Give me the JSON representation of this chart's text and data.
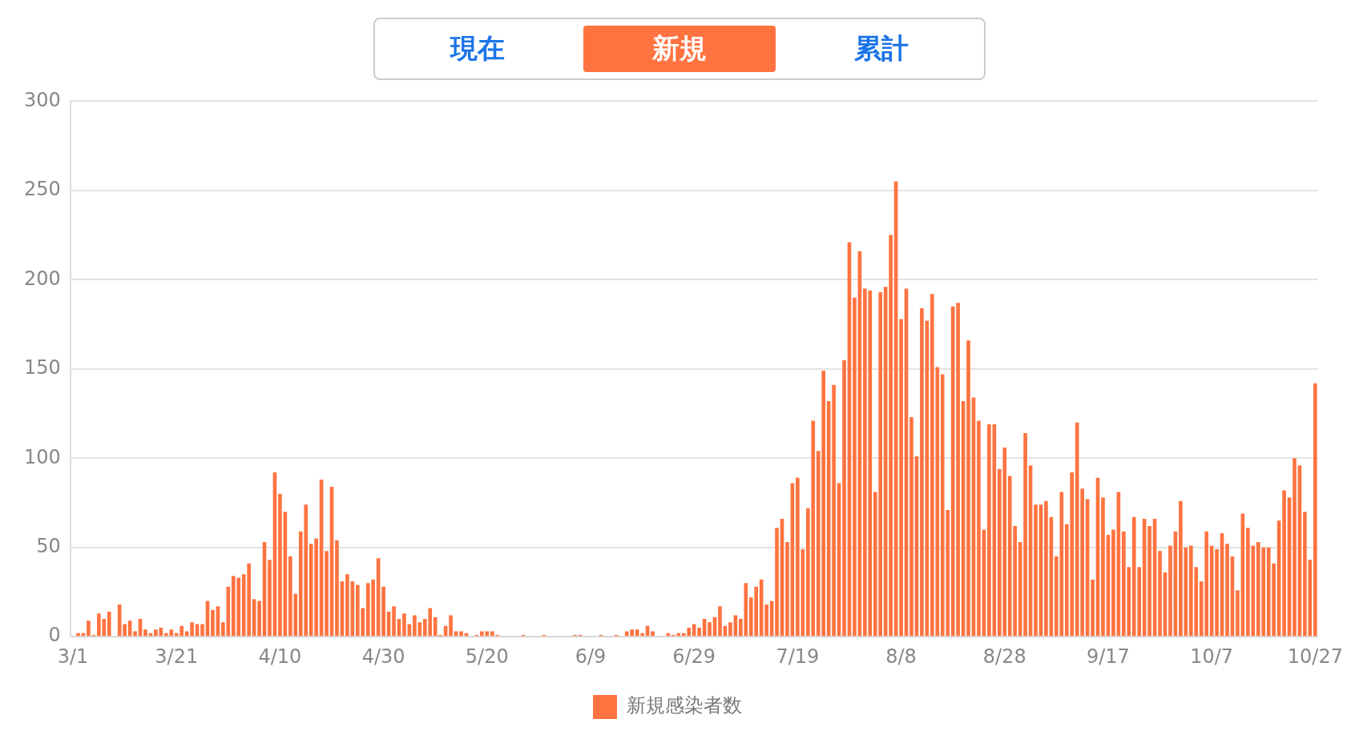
{
  "chart_data": {
    "type": "bar",
    "annotations": [
      "現在",
      "新規",
      "累計"
    ],
    "categories": [
      "3/1",
      null,
      null,
      null,
      null,
      null,
      null,
      null,
      null,
      null,
      null,
      null,
      null,
      null,
      null,
      null,
      null,
      null,
      null,
      null,
      "3/21",
      null,
      null,
      null,
      null,
      null,
      null,
      null,
      null,
      null,
      null,
      null,
      null,
      null,
      null,
      null,
      null,
      null,
      null,
      null,
      "4/10",
      null,
      null,
      null,
      null,
      null,
      null,
      null,
      null,
      null,
      null,
      null,
      null,
      null,
      null,
      null,
      null,
      null,
      null,
      null,
      "4/30",
      null,
      null,
      null,
      null,
      null,
      null,
      null,
      null,
      null,
      null,
      null,
      null,
      null,
      null,
      null,
      null,
      null,
      null,
      null,
      "5/20",
      null,
      null,
      null,
      null,
      null,
      null,
      null,
      null,
      null,
      null,
      null,
      null,
      null,
      null,
      null,
      null,
      null,
      null,
      null,
      "6/9",
      null,
      null,
      null,
      null,
      null,
      null,
      null,
      null,
      null,
      null,
      null,
      null,
      null,
      null,
      null,
      null,
      null,
      null,
      null,
      "6/29",
      null,
      null,
      null,
      null,
      null,
      null,
      null,
      null,
      null,
      null,
      null,
      null,
      null,
      null,
      null,
      null,
      null,
      null,
      null,
      "7/19",
      null,
      null,
      null,
      null,
      null,
      null,
      null,
      null,
      null,
      null,
      null,
      null,
      null,
      null,
      null,
      null,
      null,
      null,
      null,
      "8/8",
      null,
      null,
      null,
      null,
      null,
      null,
      null,
      null,
      null,
      null,
      null,
      null,
      null,
      null,
      null,
      null,
      null,
      null,
      null,
      "8/28",
      null,
      null,
      null,
      null,
      null,
      null,
      null,
      null,
      null,
      null,
      null,
      null,
      null,
      null,
      null,
      null,
      null,
      null,
      null,
      "9/17",
      null,
      null,
      null,
      null,
      null,
      null,
      null,
      null,
      null,
      null,
      null,
      null,
      null,
      null,
      null,
      null,
      null,
      null,
      null,
      "10/7",
      null,
      null,
      null,
      null,
      null,
      null,
      null,
      null,
      null,
      null,
      null,
      null,
      null,
      null,
      null,
      null,
      null,
      null,
      null,
      "10/27"
    ],
    "series": [
      {
        "name": "新規感染者数",
        "color": "#ff7340",
        "values": [
          0,
          2,
          2,
          9,
          1,
          13,
          10,
          14,
          0,
          18,
          7,
          9,
          3,
          10,
          4,
          2,
          4,
          5,
          2,
          4,
          2,
          6,
          3,
          8,
          7,
          7,
          20,
          15,
          17,
          8,
          28,
          34,
          33,
          35,
          41,
          21,
          20,
          53,
          43,
          92,
          80,
          70,
          45,
          24,
          59,
          74,
          52,
          55,
          88,
          48,
          84,
          54,
          31,
          35,
          31,
          29,
          16,
          30,
          32,
          44,
          28,
          14,
          17,
          10,
          13,
          7,
          12,
          8,
          10,
          16,
          11,
          1,
          6,
          12,
          3,
          3,
          2,
          0,
          1,
          3,
          3,
          3,
          1,
          0,
          0,
          0,
          0,
          1,
          0,
          0,
          0,
          1,
          0,
          0,
          0,
          0,
          0,
          1,
          1,
          0,
          0,
          0,
          1,
          0,
          0,
          1,
          0,
          3,
          4,
          4,
          2,
          6,
          3,
          0,
          0,
          2,
          1,
          2,
          2,
          5,
          7,
          5,
          10,
          8,
          11,
          17,
          6,
          8,
          12,
          10,
          30,
          22,
          28,
          32,
          18,
          20,
          61,
          66,
          53,
          86,
          89,
          49,
          72,
          121,
          104,
          149,
          132,
          141,
          86,
          155,
          221,
          190,
          216,
          195,
          194,
          81,
          193,
          196,
          225,
          255,
          178,
          195,
          123,
          101,
          184,
          177,
          192,
          151,
          147,
          71,
          185,
          187,
          132,
          166,
          134,
          121,
          60,
          119,
          119,
          94,
          106,
          90,
          62,
          53,
          114,
          96,
          74,
          74,
          76,
          67,
          45,
          81,
          63,
          92,
          120,
          83,
          77,
          32,
          89,
          78,
          57,
          60,
          81,
          59,
          39,
          67,
          39,
          66,
          62,
          66,
          48,
          36,
          51,
          59,
          76,
          50,
          51,
          39,
          31,
          59,
          51,
          49,
          58,
          52,
          45,
          26,
          69,
          61,
          51,
          53,
          50,
          50,
          41,
          65,
          82,
          78,
          100,
          96,
          70,
          43,
          142
        ]
      }
    ],
    "ylim": [
      0,
      300
    ],
    "yticks": [
      0,
      50,
      100,
      150,
      200,
      250,
      300
    ],
    "grid": "y",
    "legend": "bottom"
  }
}
